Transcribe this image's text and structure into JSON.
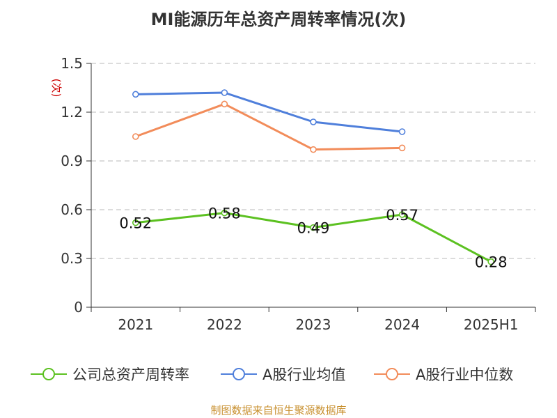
{
  "title": "MI能源历年总资产周转率情况(次)",
  "footer": "制图数据来自恒生聚源数据库",
  "chart_data": {
    "type": "line",
    "title": "MI能源历年总资产周转率情况(次)",
    "ylabel": "(次)",
    "xlabel": "",
    "categories": [
      "2021",
      "2022",
      "2023",
      "2024",
      "2025H1"
    ],
    "ylim": [
      0,
      1.5
    ],
    "yticks": [
      "0",
      "0.3",
      "0.6",
      "0.9",
      "1.2",
      "1.5"
    ],
    "grid": true,
    "legend_position": "bottom",
    "series": [
      {
        "name": "公司总资产周转率",
        "color": "#5cc121",
        "values": [
          0.52,
          0.58,
          0.49,
          0.57,
          0.28
        ],
        "data_labels": [
          "0.52",
          "0.58",
          "0.49",
          "0.57",
          "0.28"
        ]
      },
      {
        "name": "A股行业均值",
        "color": "#4f7fdb",
        "values": [
          1.31,
          1.32,
          1.14,
          1.08,
          null
        ]
      },
      {
        "name": "A股行业中位数",
        "color": "#f28c5a",
        "values": [
          1.05,
          1.25,
          0.97,
          0.98,
          null
        ]
      }
    ]
  }
}
